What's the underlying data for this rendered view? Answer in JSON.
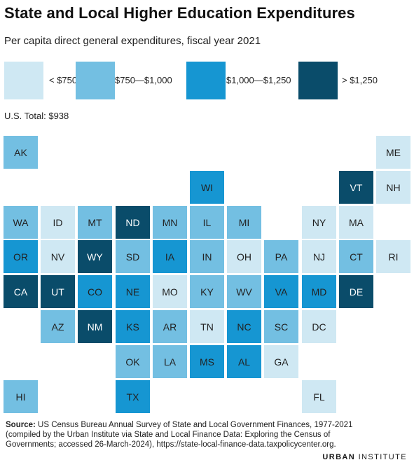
{
  "title": "State and Local Higher Education Expenditures",
  "subtitle": "Per capita direct general expenditures, fiscal year 2021",
  "legend": [
    {
      "label": "< $750",
      "color": "#cfe8f3"
    },
    {
      "label": "$750—$1,000",
      "color": "#73bfe2"
    },
    {
      "label": "$1,000—$1,250",
      "color": "#1696d2"
    },
    {
      "label": "> $1,250",
      "color": "#0a4c6a"
    }
  ],
  "us_total": "U.S. Total: $938",
  "bins": {
    "lt750": {
      "color": "#cfe8f3",
      "text": "#222222"
    },
    "750to1000": {
      "color": "#73bfe2",
      "text": "#222222"
    },
    "1000to1250": {
      "color": "#1696d2",
      "text": "#222222"
    },
    "gt1250": {
      "color": "#0a4c6a",
      "text": "#ffffff"
    }
  },
  "states": [
    {
      "abbr": "AK",
      "bin": "750to1000"
    },
    {
      "abbr": "ME",
      "bin": "lt750"
    },
    {
      "abbr": "WI",
      "bin": "1000to1250"
    },
    {
      "abbr": "VT",
      "bin": "gt1250"
    },
    {
      "abbr": "NH",
      "bin": "lt750"
    },
    {
      "abbr": "WA",
      "bin": "750to1000"
    },
    {
      "abbr": "ID",
      "bin": "lt750"
    },
    {
      "abbr": "MT",
      "bin": "750to1000"
    },
    {
      "abbr": "ND",
      "bin": "gt1250"
    },
    {
      "abbr": "MN",
      "bin": "750to1000"
    },
    {
      "abbr": "IL",
      "bin": "750to1000"
    },
    {
      "abbr": "MI",
      "bin": "750to1000"
    },
    {
      "abbr": "NY",
      "bin": "lt750"
    },
    {
      "abbr": "MA",
      "bin": "lt750"
    },
    {
      "abbr": "OR",
      "bin": "1000to1250"
    },
    {
      "abbr": "NV",
      "bin": "lt750"
    },
    {
      "abbr": "WY",
      "bin": "gt1250"
    },
    {
      "abbr": "SD",
      "bin": "750to1000"
    },
    {
      "abbr": "IA",
      "bin": "1000to1250"
    },
    {
      "abbr": "IN",
      "bin": "750to1000"
    },
    {
      "abbr": "OH",
      "bin": "lt750"
    },
    {
      "abbr": "PA",
      "bin": "750to1000"
    },
    {
      "abbr": "NJ",
      "bin": "lt750"
    },
    {
      "abbr": "CT",
      "bin": "750to1000"
    },
    {
      "abbr": "RI",
      "bin": "lt750"
    },
    {
      "abbr": "CA",
      "bin": "gt1250"
    },
    {
      "abbr": "UT",
      "bin": "gt1250"
    },
    {
      "abbr": "CO",
      "bin": "1000to1250"
    },
    {
      "abbr": "NE",
      "bin": "1000to1250"
    },
    {
      "abbr": "MO",
      "bin": "lt750"
    },
    {
      "abbr": "KY",
      "bin": "750to1000"
    },
    {
      "abbr": "WV",
      "bin": "750to1000"
    },
    {
      "abbr": "VA",
      "bin": "1000to1250"
    },
    {
      "abbr": "MD",
      "bin": "1000to1250"
    },
    {
      "abbr": "DE",
      "bin": "gt1250"
    },
    {
      "abbr": "AZ",
      "bin": "750to1000"
    },
    {
      "abbr": "NM",
      "bin": "gt1250"
    },
    {
      "abbr": "KS",
      "bin": "1000to1250"
    },
    {
      "abbr": "AR",
      "bin": "750to1000"
    },
    {
      "abbr": "TN",
      "bin": "lt750"
    },
    {
      "abbr": "NC",
      "bin": "1000to1250"
    },
    {
      "abbr": "SC",
      "bin": "750to1000"
    },
    {
      "abbr": "DC",
      "bin": "lt750"
    },
    {
      "abbr": "OK",
      "bin": "750to1000"
    },
    {
      "abbr": "LA",
      "bin": "750to1000"
    },
    {
      "abbr": "MS",
      "bin": "1000to1250"
    },
    {
      "abbr": "AL",
      "bin": "1000to1250"
    },
    {
      "abbr": "GA",
      "bin": "lt750"
    },
    {
      "abbr": "HI",
      "bin": "750to1000"
    },
    {
      "abbr": "TX",
      "bin": "1000to1250"
    },
    {
      "abbr": "FL",
      "bin": "lt750"
    }
  ],
  "source": {
    "label": "Source:",
    "text": " US Census Bureau Annual Survey of State and Local Government Finances, 1977-2021 (compiled by the Urban Institute via State and Local Finance Data: Exploring the Census of Governments; accessed 26-March-2024), https://state-local-finance-data.taxpolicycenter.org."
  },
  "logo": {
    "part1": "URBAN",
    "part2": " INSTITUTE"
  }
}
